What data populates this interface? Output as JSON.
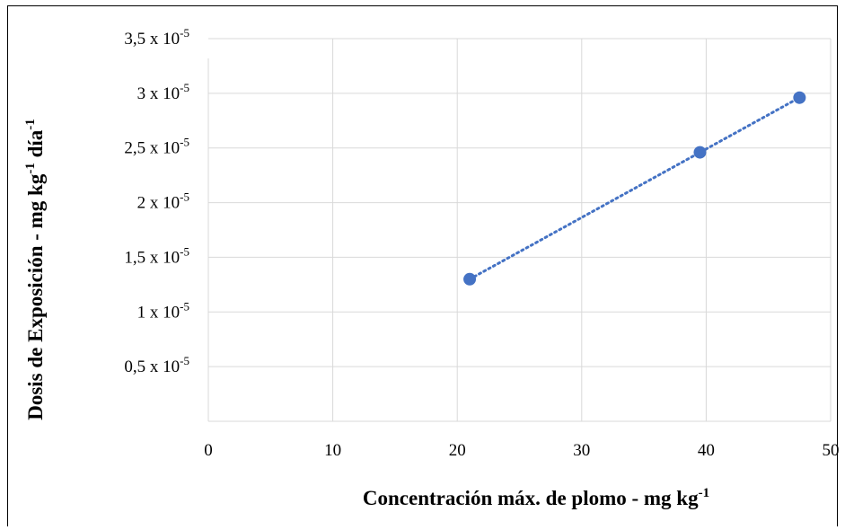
{
  "chart_data": {
    "type": "scatter",
    "xlabel": {
      "main": "Concentración máx. de plomo - mg kg",
      "sup": "-1"
    },
    "ylabel": {
      "part1": "Dosis de Exposición - mg kg",
      "sup1": "-1",
      "part2": " día",
      "sup2": "-1"
    },
    "xlim": [
      0,
      50
    ],
    "ylim": [
      0,
      3.5e-05
    ],
    "x_ticks": [
      {
        "value": 0,
        "label": "0"
      },
      {
        "value": 10,
        "label": "10"
      },
      {
        "value": 20,
        "label": "20"
      },
      {
        "value": 30,
        "label": "30"
      },
      {
        "value": 40,
        "label": "40"
      },
      {
        "value": 50,
        "label": "50"
      }
    ],
    "y_ticks": [
      {
        "value": 5e-06,
        "mantissa": "0,5 x 10",
        "exp": "-5"
      },
      {
        "value": 1e-05,
        "mantissa": "1 x 10",
        "exp": "-5"
      },
      {
        "value": 1.5e-05,
        "mantissa": "1,5 x 10",
        "exp": "-5"
      },
      {
        "value": 2e-05,
        "mantissa": "2 x 10",
        "exp": "-5"
      },
      {
        "value": 2.5e-05,
        "mantissa": "2,5 x 10",
        "exp": "-5"
      },
      {
        "value": 3e-05,
        "mantissa": "3 x 10",
        "exp": "-5"
      },
      {
        "value": 3.5e-05,
        "mantissa": "3,5 x 10",
        "exp": "-5"
      }
    ],
    "series": [
      {
        "points": [
          {
            "x": 21.0,
            "y": 1.3e-05
          },
          {
            "x": 39.5,
            "y": 2.46e-05
          },
          {
            "x": 47.5,
            "y": 2.96e-05
          }
        ]
      }
    ],
    "trendline": {
      "style": "dotted",
      "from_x": 21.0,
      "to_x": 47.5
    },
    "grid": true,
    "colors": {
      "marker": "#4472C4",
      "trendline": "#4472C4",
      "grid": "#d9d9d9"
    }
  }
}
